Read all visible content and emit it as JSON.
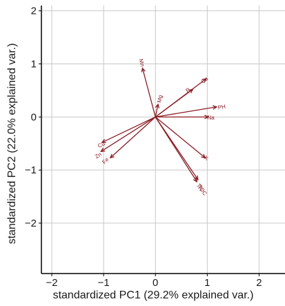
{
  "chart_data": {
    "type": "biplot",
    "xlabel": "standardized PC1 (29.2% explained var.)",
    "ylabel": "standardized PC2 (22.0% explained var.)",
    "xlim": [
      -2.2,
      2.5
    ],
    "ylim": [
      -2.95,
      2.1
    ],
    "xticks": [
      -2,
      -1,
      0,
      1,
      2
    ],
    "yticks": [
      -2,
      -1,
      0,
      1,
      2
    ],
    "xtick_labels": [
      "−2",
      "−1",
      "0",
      "1",
      "2"
    ],
    "ytick_labels": [
      "−2",
      "−1",
      "0",
      "1",
      "2"
    ],
    "grid": true,
    "arrow_color": "#8b1c24",
    "loadings": [
      {
        "name": "Mn",
        "x": -0.25,
        "y": 0.92,
        "label_x": -0.27,
        "label_y": 1.02
      },
      {
        "name": "Mg",
        "x": 0.05,
        "y": 0.24,
        "label_x": 0.09,
        "label_y": 0.34
      },
      {
        "name": "P",
        "x": 0.72,
        "y": 0.52,
        "label_x": 0.63,
        "label_y": 0.5
      },
      {
        "name": "Ca",
        "x": 0.98,
        "y": 0.72,
        "label_x": 0.95,
        "label_y": 0.69
      },
      {
        "name": "PH",
        "x": 1.18,
        "y": 0.19,
        "label_x": 1.28,
        "label_y": 0.18
      },
      {
        "name": "Na",
        "x": 1.02,
        "y": 0.0,
        "label_x": 1.07,
        "label_y": -0.02
      },
      {
        "name": "K",
        "x": 0.96,
        "y": -0.77,
        "label_x": 0.98,
        "label_y": -0.78
      },
      {
        "name": "TOC",
        "x": 0.82,
        "y": -1.18,
        "label_x": 0.9,
        "label_y": -1.38
      },
      {
        "name": "TN",
        "x": 0.8,
        "y": -1.22,
        "label_x": 0.85,
        "label_y": -1.33
      },
      {
        "name": "Cu",
        "x": -1.03,
        "y": -0.48,
        "label_x": -1.04,
        "label_y": -0.53
      },
      {
        "name": "Zn",
        "x": -1.05,
        "y": -0.65,
        "label_x": -1.1,
        "label_y": -0.73
      },
      {
        "name": "Fe",
        "x": -0.87,
        "y": -0.77,
        "label_x": -0.96,
        "label_y": -0.83
      }
    ]
  }
}
